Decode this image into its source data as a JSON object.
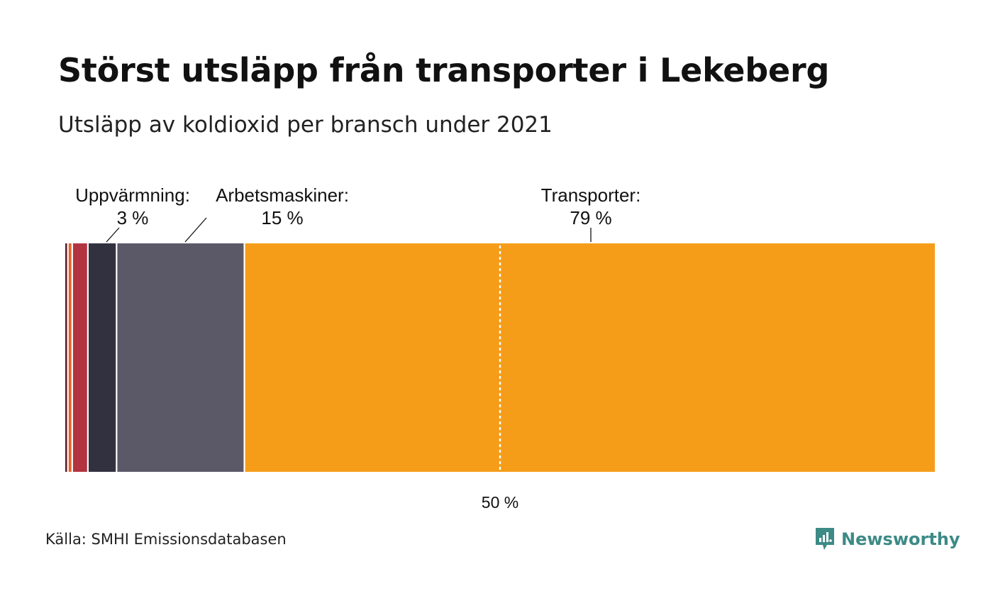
{
  "title": "Störst utsläpp från transporter i Lekeberg",
  "subtitle": "Utsläpp av koldioxid per bransch under 2021",
  "source": "Källa: SMHI Emissionsdatabasen",
  "brand": "Newsworthy",
  "colors": {
    "background": "#ffffff",
    "brand": "#3d8a86",
    "midline": "#ffffff"
  },
  "chart_data": {
    "type": "stacked-bar-100",
    "unit": "%",
    "reference_line": {
      "value": 50,
      "label": "50 %"
    },
    "segments": [
      {
        "value": 0.3,
        "color": "#5a1f2f",
        "label": "",
        "value_label": ""
      },
      {
        "value": 0.5,
        "color": "#e8632c",
        "label": "",
        "value_label": ""
      },
      {
        "value": 1.8,
        "color": "#b23441",
        "label": "",
        "value_label": ""
      },
      {
        "value": 3.3,
        "color": "#32313f",
        "label": "Uppvärmning:",
        "value_label": "3 %"
      },
      {
        "value": 14.7,
        "color": "#5b5968",
        "label": "Arbetsmaskiner:",
        "value_label": "15 %"
      },
      {
        "value": 79.4,
        "color": "#f59d19",
        "label": "Transporter:",
        "value_label": "79 %"
      }
    ]
  }
}
